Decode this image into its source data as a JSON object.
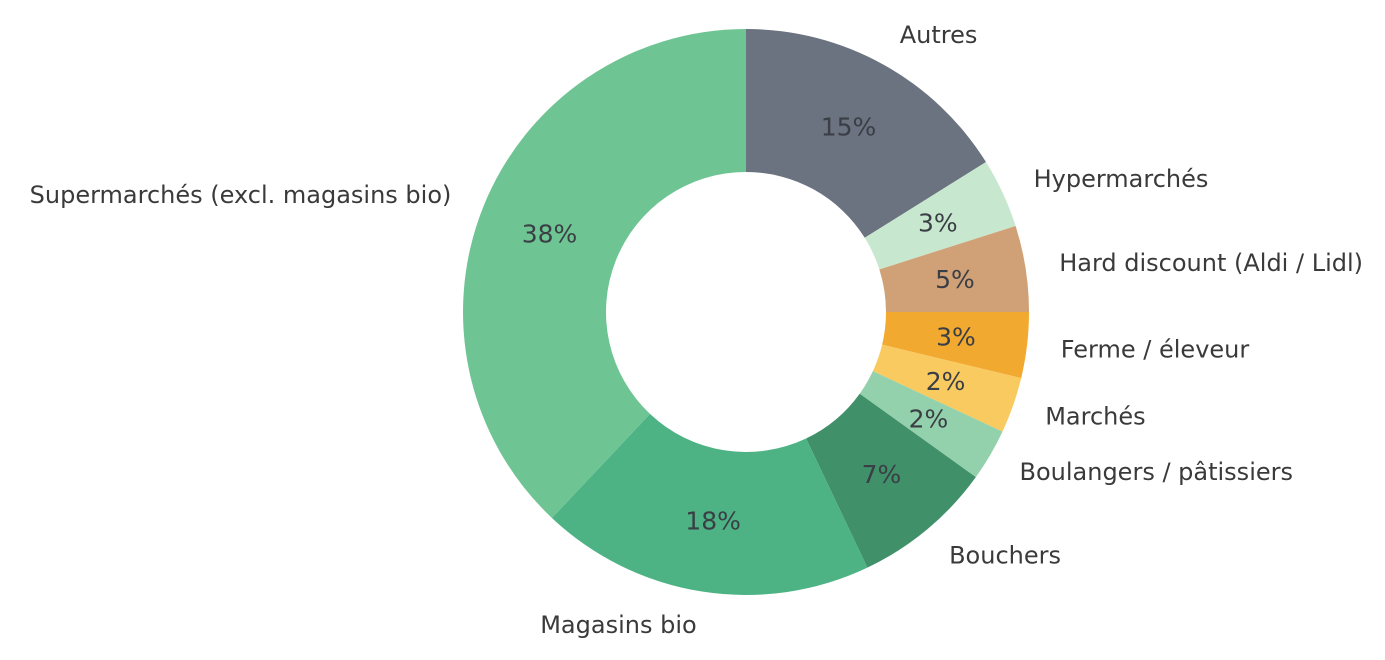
{
  "figure": {
    "title": "",
    "background_color": "#ffffff",
    "text_color": "#3a3a3a"
  },
  "chart_data": {
    "type": "pie",
    "donut": true,
    "title": "",
    "categories": [
      "Autres",
      "Hypermarchés",
      "Hard discount (Aldi / Lidl)",
      "Ferme / éleveur",
      "Marchés",
      "Boulangers / pâtissiers",
      "Bouchers",
      "Magasins bio",
      "Supermarchés (excl. magasins bio)"
    ],
    "values": [
      15,
      3,
      5,
      3,
      2,
      2,
      7,
      18,
      38
    ],
    "percent_labels": [
      "15%",
      "3%",
      "5%",
      "3%",
      "2%",
      "2%",
      "7%",
      "18%",
      "38%"
    ],
    "colors": [
      "#6b7280",
      "#c7e8cf",
      "#d0a077",
      "#f2a930",
      "#f9ca60",
      "#92d1ab",
      "#40906a",
      "#4db385",
      "#6ec593"
    ],
    "layout": {
      "start_angle_deg": 0,
      "direction": "clockwise",
      "wedge_degrees": [
        58.0,
        14.3,
        17.7,
        13.5,
        11.5,
        10.7,
        28.9,
        68.7,
        136.7
      ],
      "inner_radius_ratio": 0.495,
      "pct_label_distance": 0.747,
      "category_label_distance": 1.12,
      "legend": "none",
      "grid": false
    }
  }
}
